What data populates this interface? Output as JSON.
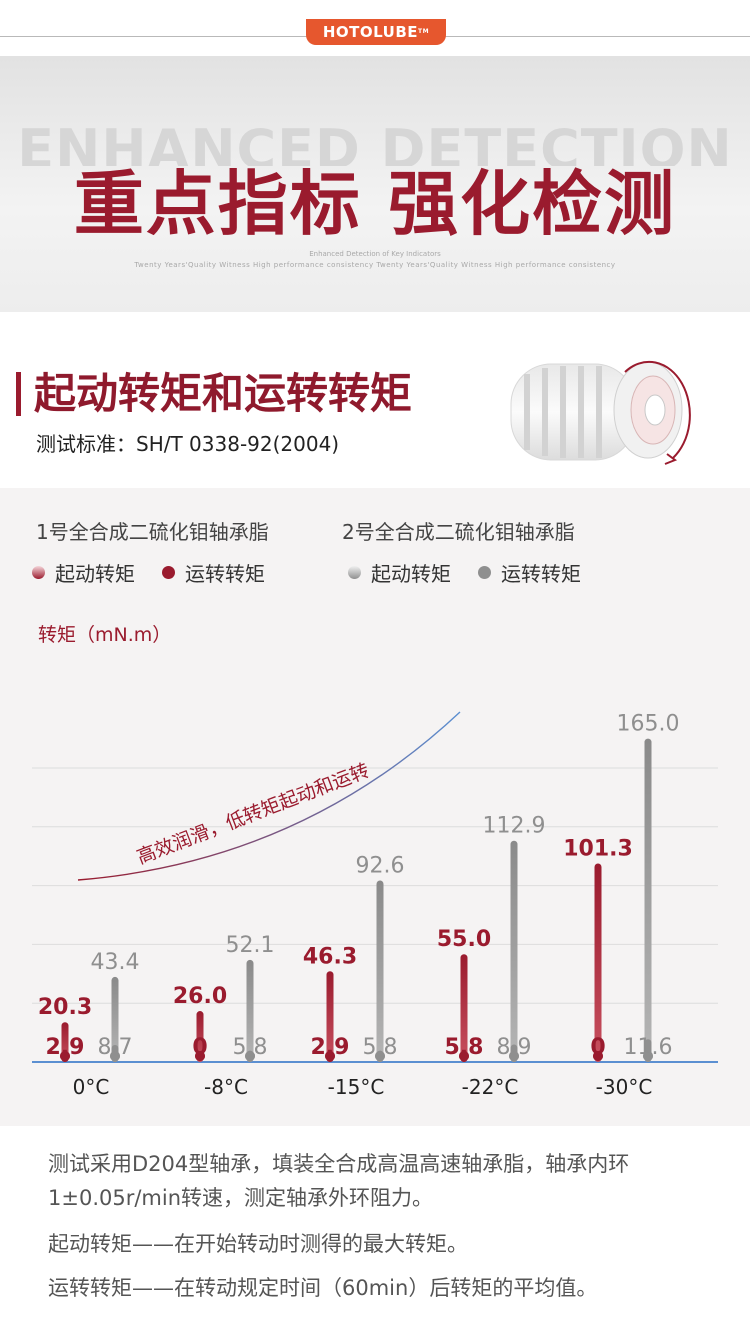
{
  "brand": {
    "logo_text": "HOTOLUBE",
    "logo_tm": "TM"
  },
  "hero": {
    "ghost_text": "ENHANCED DETECTION",
    "title": "重点指标 强化检测",
    "subtitle_1": "Enhanced Detection of Key Indicators",
    "subtitle_2": "Twenty Years'Quality Witness High performance consistency Twenty Years'Quality Witness High performance consistency"
  },
  "section": {
    "title": "起动转矩和运转转矩",
    "standard": "测试标准：SH/T 0338-92(2004)"
  },
  "legend": {
    "group1": "1号全合成二硫化钼轴承脂",
    "group2": "2号全合成二硫化钼轴承脂",
    "g1_start": "起动转矩",
    "g1_run": "运转转矩",
    "g2_start": "起动转矩",
    "g2_run": "运转转矩"
  },
  "colors": {
    "red": "#9a1b2e",
    "gray": "#8f8f8f",
    "axis": "#5b8fd1",
    "curve_top": "#5b8fd1",
    "curve_bottom": "#9a1b2e"
  },
  "chart_data": {
    "type": "bar",
    "ylabel": "转矩（mN.m）",
    "annotation": "高效润滑，低转矩起动和运转",
    "categories": [
      "0°C",
      "-8°C",
      "-15°C",
      "-22°C",
      "-30°C"
    ],
    "series": [
      {
        "name": "起动转矩",
        "values": [
          20.3,
          26.0,
          46.3,
          55.0,
          101.3
        ],
        "labels": [
          "20.3",
          "26.0",
          "46.3",
          "55.0",
          "101.3"
        ]
      },
      {
        "name": "运转转矩",
        "values": [
          2.9,
          0,
          2.9,
          5.8,
          0
        ],
        "labels": [
          "2.9",
          "0",
          "2.9",
          "5.8",
          "0"
        ]
      },
      {
        "name": "起动转矩",
        "values": [
          43.4,
          52.1,
          92.6,
          112.9,
          165.0
        ],
        "labels": [
          "43.4",
          "52.1",
          "92.6",
          "112.9",
          "165.0"
        ]
      },
      {
        "name": "运转转矩",
        "values": [
          8.7,
          5.8,
          5.8,
          8.9,
          11.6
        ],
        "labels": [
          "8.7",
          "5.8",
          "5.8",
          "8.9",
          "11.6"
        ]
      }
    ],
    "ylim": [
      0,
      180
    ],
    "grid": true
  },
  "description": {
    "line1": "测试采用D204型轴承，填装全合成高温高速轴承脂，轴承内环",
    "line2": "1±0.05r/min转速，测定轴承外环阻力。",
    "line3": "起动转矩——在开始转动时测得的最大转矩。",
    "line4": "运转转矩——在转动规定时间（60min）后转矩的平均值。"
  }
}
